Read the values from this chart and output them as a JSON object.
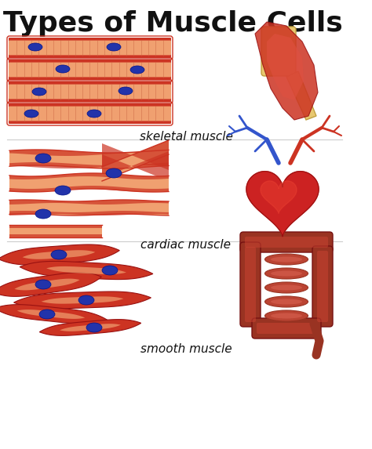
{
  "title": "Types of Muscle Cells",
  "title_fontsize": 26,
  "title_fontweight": "bold",
  "background_color": "#ffffff",
  "labels": [
    "skeletal muscle",
    "cardiac muscle",
    "smooth muscle"
  ],
  "label_fontsize": 11,
  "fiber_base_color": "#cc3322",
  "fiber_light_color": "#f0a070",
  "fiber_stripe_color": "#e08060",
  "nucleus_color": "#2233aa",
  "nucleus_edge": "#001188"
}
